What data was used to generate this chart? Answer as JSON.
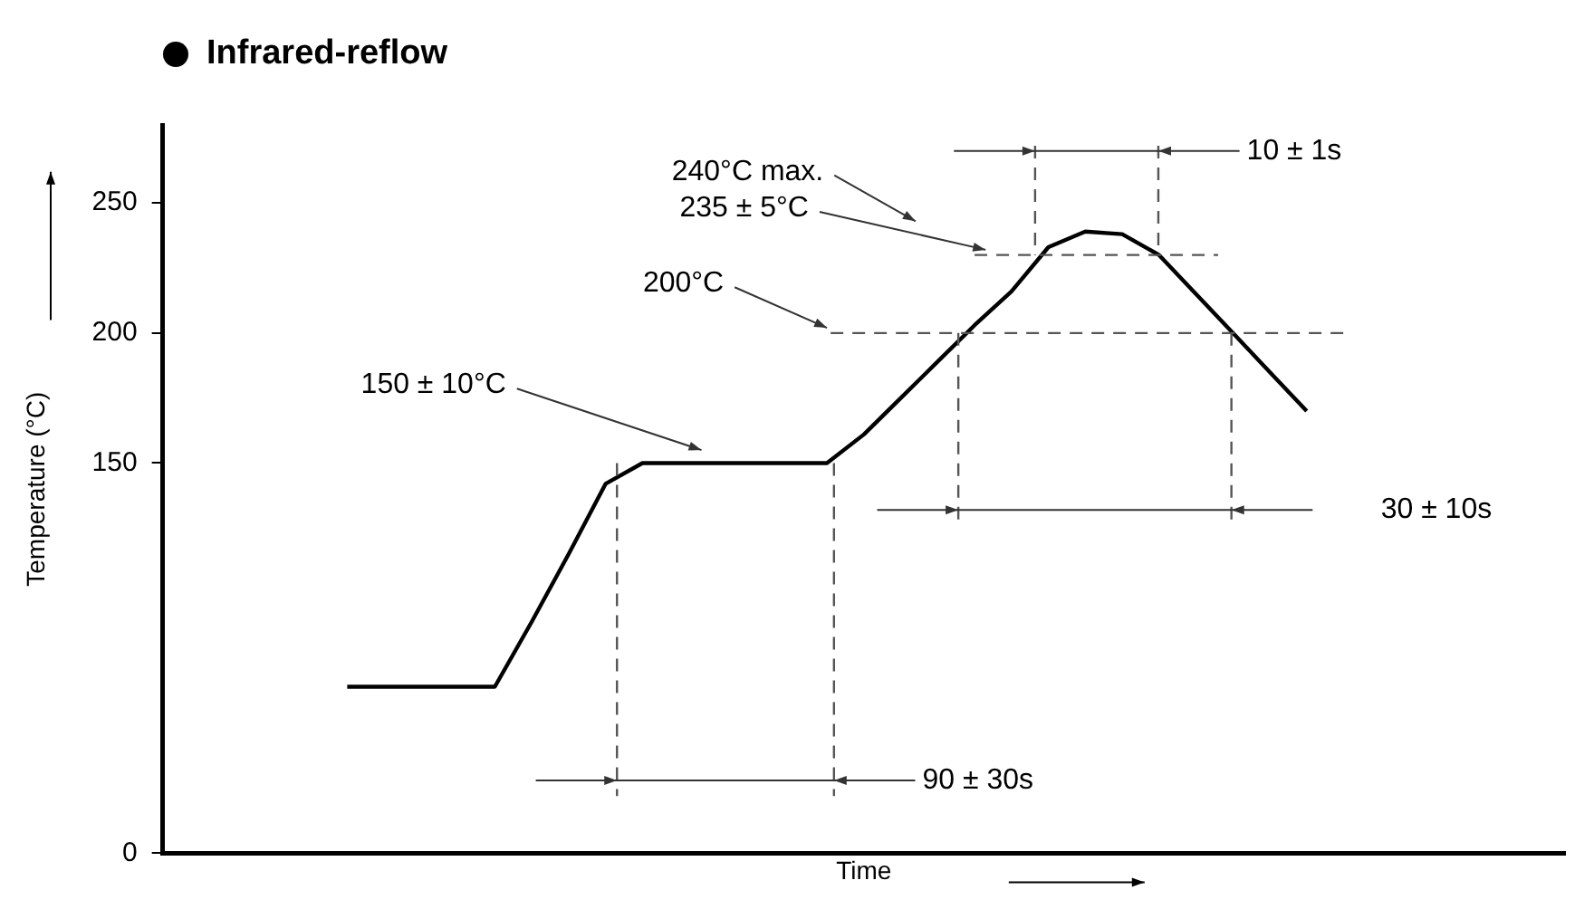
{
  "chart_data": {
    "type": "line",
    "title": "Infrared-reflow",
    "xlabel": "Time",
    "ylabel": "Temperature (°C)",
    "categories": [
      null,
      null,
      null,
      null,
      null,
      null,
      null,
      null,
      null,
      null,
      null,
      null,
      null,
      null,
      null,
      null,
      null,
      null,
      null,
      null,
      null,
      null,
      null,
      null,
      null,
      null,
      null,
      null,
      null,
      null,
      null,
      null,
      null,
      null,
      null,
      null,
      null,
      null,
      null
    ],
    "series": [
      {
        "color": "#000000",
        "values": [
          null,
          null,
          null,
          null,
          null,
          64,
          64,
          64,
          64,
          64,
          89,
          115,
          142,
          150,
          150,
          150,
          150,
          150,
          150,
          161,
          175,
          189,
          203,
          216,
          233,
          239,
          238,
          230,
          215,
          200,
          185,
          170,
          null,
          null,
          null,
          null,
          null,
          null,
          null
        ]
      }
    ],
    "ylim": [
      0,
      280
    ],
    "yticks": [
      0,
      150,
      200,
      250
    ],
    "grid": false,
    "legend": false,
    "tick_labels": "y",
    "marker": "none",
    "line_style": "solid",
    "ref_lines": [
      {
        "axis": "y",
        "value": 230,
        "color": "#555555",
        "line_style": "dashed"
      },
      {
        "axis": "y",
        "value": 200,
        "color": "#555555",
        "line_style": "dashed"
      }
    ],
    "annotations": [
      "240°C max.",
      "235 ± 5°C",
      "200°C",
      "150 ± 10°C",
      "10 ± 1s",
      "30 ± 10s",
      "90 ± 30s"
    ]
  }
}
